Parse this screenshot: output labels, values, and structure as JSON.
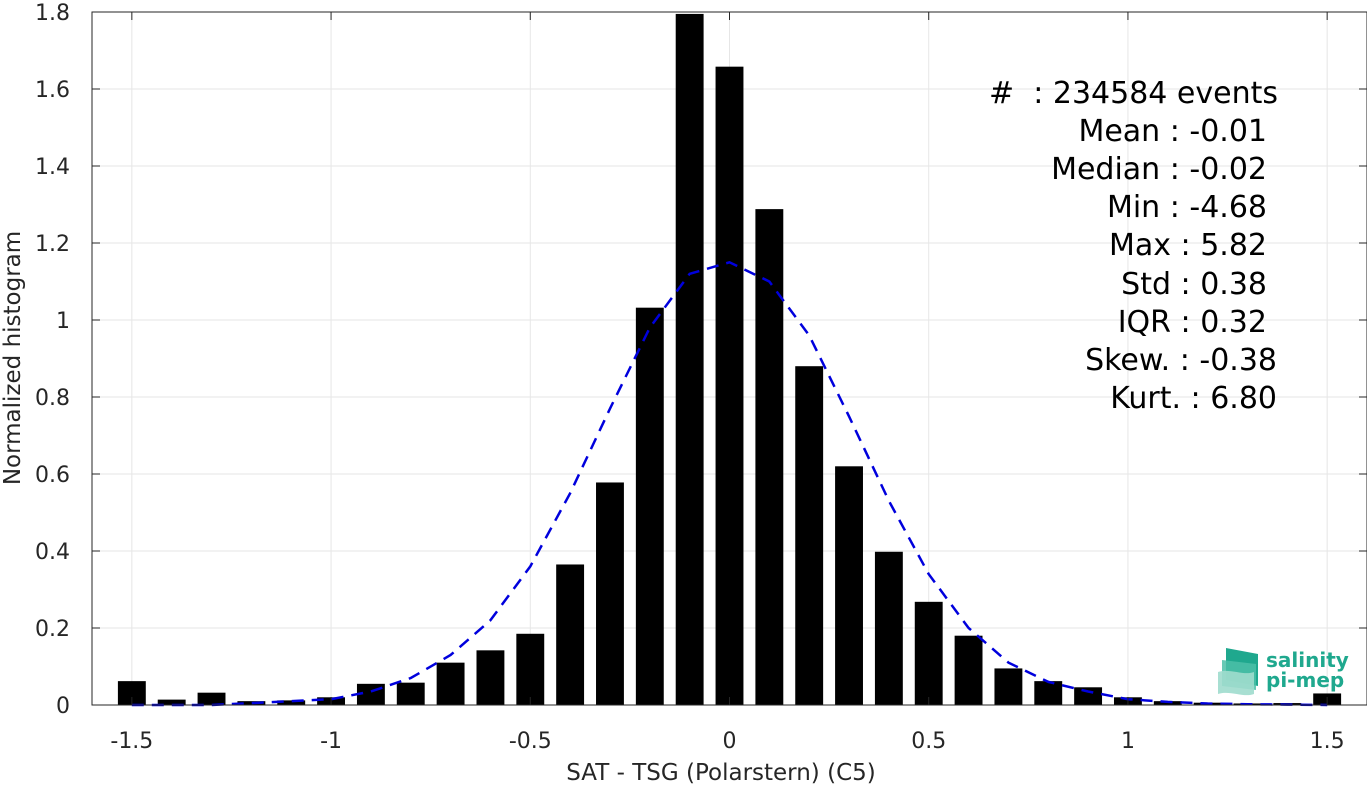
{
  "chart_data": {
    "type": "bar",
    "xlabel": "SAT - TSG (Polarstern) (C5)",
    "ylabel": "Normalized histogram",
    "xlim": [
      -1.6,
      1.6
    ],
    "ylim": [
      0,
      1.8
    ],
    "xticks": [
      -1.5,
      -1,
      -0.5,
      0,
      0.5,
      1,
      1.5
    ],
    "xtick_labels": [
      "-1.5",
      "-1",
      "-0.5",
      "0",
      "0.5",
      "1",
      "1.5"
    ],
    "yticks": [
      0,
      0.2,
      0.4,
      0.6,
      0.8,
      1,
      1.2,
      1.4,
      1.6,
      1.8
    ],
    "ytick_labels": [
      "0",
      "0.2",
      "0.4",
      "0.6",
      "0.8",
      "1",
      "1.2",
      "1.4",
      "1.6",
      "1.8"
    ],
    "grid": true,
    "bin_width": 0.1,
    "bar_color": "#000000",
    "bins": [
      -1.5,
      -1.4,
      -1.3,
      -1.2,
      -1.1,
      -1.0,
      -0.9,
      -0.8,
      -0.7,
      -0.6,
      -0.5,
      -0.4,
      -0.3,
      -0.2,
      -0.1,
      0.0,
      0.1,
      0.2,
      0.3,
      0.4,
      0.5,
      0.6,
      0.7,
      0.8,
      0.9,
      1.0,
      1.1,
      1.2,
      1.3,
      1.4,
      1.5
    ],
    "values": [
      0.062,
      0.014,
      0.032,
      0.01,
      0.012,
      0.02,
      0.055,
      0.058,
      0.11,
      0.142,
      0.185,
      0.365,
      0.578,
      1.032,
      1.795,
      1.658,
      1.288,
      0.88,
      0.62,
      0.398,
      0.268,
      0.18,
      0.095,
      0.062,
      0.046,
      0.02,
      0.01,
      0.006,
      0.004,
      0.005,
      0.03
    ],
    "fit_curve": {
      "style": "dashed",
      "color": "#0000dd",
      "x": [
        -1.5,
        -1.4,
        -1.3,
        -1.2,
        -1.1,
        -1.0,
        -0.9,
        -0.8,
        -0.7,
        -0.6,
        -0.5,
        -0.4,
        -0.3,
        -0.2,
        -0.1,
        0.0,
        0.1,
        0.2,
        0.3,
        0.4,
        0.5,
        0.6,
        0.7,
        0.8,
        0.9,
        1.0,
        1.1,
        1.2,
        1.3,
        1.4,
        1.5
      ],
      "y": [
        0.0,
        0.0,
        0.0,
        0.005,
        0.01,
        0.015,
        0.035,
        0.07,
        0.13,
        0.22,
        0.36,
        0.55,
        0.77,
        0.98,
        1.12,
        1.15,
        1.1,
        0.96,
        0.75,
        0.53,
        0.34,
        0.2,
        0.11,
        0.06,
        0.035,
        0.015,
        0.008,
        0.004,
        0.002,
        0.001,
        0.0
      ]
    },
    "stats": {
      "events": "#  : 234584 events",
      "mean": "Mean : -0.01",
      "median": "Median : -0.02",
      "min": "Min : -4.68",
      "max": "Max : 5.82",
      "std": "Std : 0.38",
      "iqr": "IQR : 0.32",
      "skew": "Skew. : -0.38",
      "kurt": "Kurt. : 6.80"
    }
  },
  "logo": {
    "line1": "salinity",
    "line2": "pi-mep"
  }
}
